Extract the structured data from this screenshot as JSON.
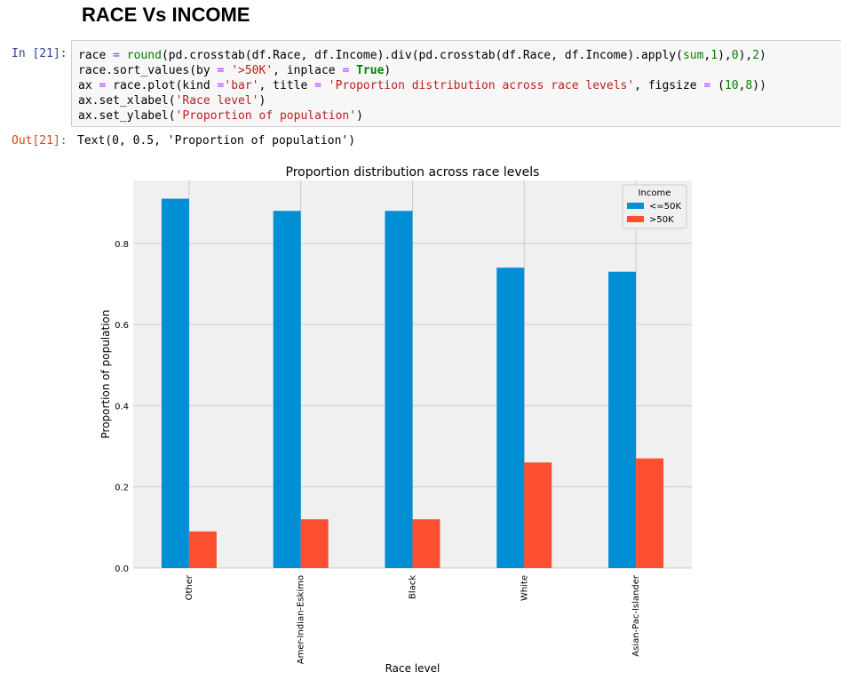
{
  "notebook": {
    "heading": "RACE Vs INCOME",
    "in_prompt": "In [21]:",
    "out_prompt": "Out[21]:",
    "output_text": "Text(0, 0.5, 'Proportion of population')",
    "code_lines": [
      "race = round(pd.crosstab(df.Race, df.Income).div(pd.crosstab(df.Race, df.Income).apply(sum,1),0),2)",
      "race.sort_values(by = '>50K', inplace = True)",
      "ax = race.plot(kind ='bar', title = 'Proportion distribution across race levels', figsize = (10,8))",
      "ax.set_xlabel('Race level')",
      "ax.set_ylabel('Proportion of population')"
    ]
  },
  "chart_data": {
    "type": "bar",
    "title": "Proportion distribution across race levels",
    "xlabel": "Race level",
    "ylabel": "Proportion of population",
    "categories": [
      "Other",
      "Amer-Indian-Eskimo",
      "Black",
      "White",
      "Asian-Pac-Islander"
    ],
    "series": [
      {
        "name": "<=50K",
        "values": [
          0.91,
          0.88,
          0.88,
          0.74,
          0.73
        ],
        "color": "#008fd5"
      },
      {
        "name": ">50K",
        "values": [
          0.09,
          0.12,
          0.12,
          0.26,
          0.27
        ],
        "color": "#fc4f30"
      }
    ],
    "ylim": [
      0,
      0.955
    ],
    "yticks": [
      0.0,
      0.2,
      0.4,
      0.6,
      0.8
    ],
    "ytick_labels": [
      "0.0",
      "0.2",
      "0.4",
      "0.6",
      "0.8"
    ],
    "legend": {
      "title": "Income",
      "position": "top-right"
    },
    "grid": true,
    "background": "#f0f0f0",
    "grid_color": "#cbcbcb"
  }
}
